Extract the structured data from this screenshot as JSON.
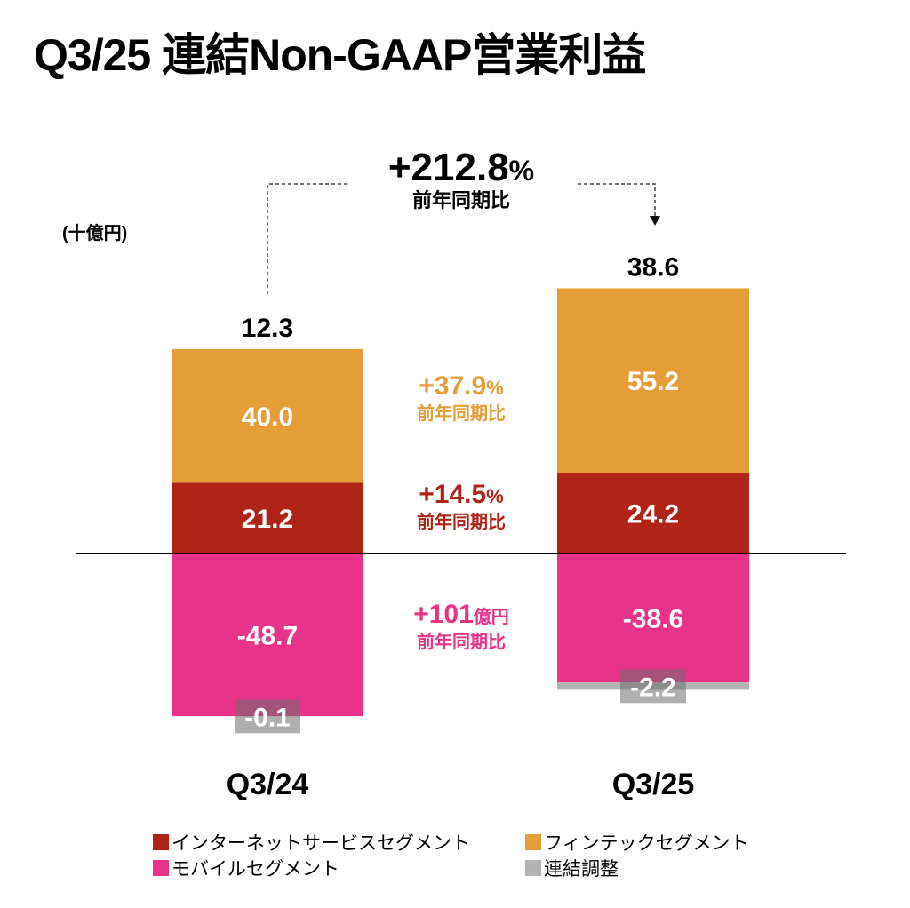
{
  "title": "Q3/25 連結Non-GAAP営業利益",
  "unit_label": "(十億円)",
  "colors": {
    "internet": "#b02418",
    "fintech": "#e59d38",
    "mobile": "#e9338b",
    "adjustment": "#b3b3b3",
    "label_box": "#9a9a9a"
  },
  "chart_data": {
    "type": "bar",
    "stacked": true,
    "title": "Q3/25 連結Non-GAAP営業利益",
    "ylabel": "(十億円)",
    "categories": [
      "Q3/24",
      "Q3/25"
    ],
    "totals": [
      12.3,
      38.6
    ],
    "series": [
      {
        "key": "internet",
        "name": "インターネットサービスセグメント",
        "values": [
          21.2,
          24.2
        ]
      },
      {
        "key": "fintech",
        "name": "フィンテックセグメント",
        "values": [
          40.0,
          55.2
        ]
      },
      {
        "key": "mobile",
        "name": "モバイルセグメント",
        "values": [
          -48.7,
          -38.6
        ]
      },
      {
        "key": "adjustment",
        "name": "連結調整",
        "values": [
          -0.1,
          -2.2
        ]
      }
    ],
    "value_labels": {
      "internet": [
        "21.2",
        "24.2"
      ],
      "fintech": [
        "40.0",
        "55.2"
      ],
      "mobile": [
        "-48.7",
        "-38.6"
      ],
      "adjustment": [
        "-0.1",
        "-2.2"
      ],
      "totals": [
        "12.3",
        "38.6"
      ]
    },
    "annotations": {
      "total_growth": {
        "value": "+212.8",
        "suffix": "%",
        "sub": "前年同期比"
      },
      "fintech_growth": {
        "value": "+37.9",
        "suffix": "%",
        "sub": "前年同期比"
      },
      "internet_growth": {
        "value": "+14.5",
        "suffix": "%",
        "sub": "前年同期比"
      },
      "mobile_growth": {
        "value": "+101",
        "suffix": "億円",
        "sub": "前年同期比"
      }
    },
    "legend": [
      {
        "key": "internet",
        "label": "インターネットサービスセグメント"
      },
      {
        "key": "fintech",
        "label": "フィンテックセグメント"
      },
      {
        "key": "mobile",
        "label": "モバイルセグメント"
      },
      {
        "key": "adjustment",
        "label": "連結調整"
      }
    ],
    "legend_position": "bottom"
  }
}
